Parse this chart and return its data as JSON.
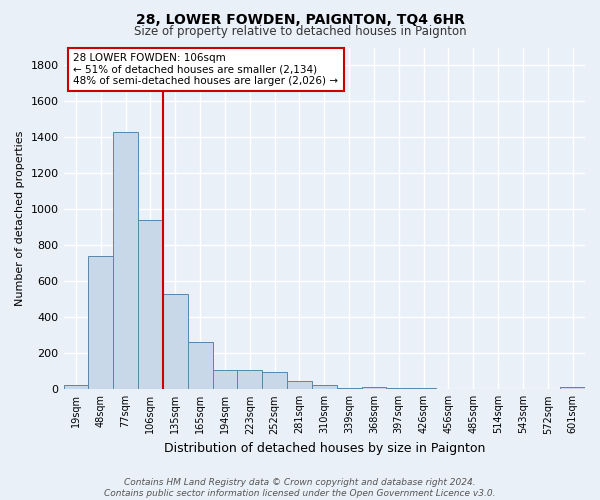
{
  "title": "28, LOWER FOWDEN, PAIGNTON, TQ4 6HR",
  "subtitle": "Size of property relative to detached houses in Paignton",
  "xlabel": "Distribution of detached houses by size in Paignton",
  "ylabel": "Number of detached properties",
  "bar_labels": [
    "19sqm",
    "48sqm",
    "77sqm",
    "106sqm",
    "135sqm",
    "165sqm",
    "194sqm",
    "223sqm",
    "252sqm",
    "281sqm",
    "310sqm",
    "339sqm",
    "368sqm",
    "397sqm",
    "426sqm",
    "456sqm",
    "485sqm",
    "514sqm",
    "543sqm",
    "572sqm",
    "601sqm"
  ],
  "bar_values": [
    25,
    740,
    1430,
    940,
    530,
    265,
    110,
    110,
    95,
    45,
    25,
    5,
    15,
    5,
    5,
    0,
    0,
    0,
    0,
    0,
    15
  ],
  "bar_color": "#c8d8e8",
  "bar_edge_color": "#5588aa",
  "vline_x_index": 3,
  "vline_color": "#cc0000",
  "ylim": [
    0,
    1900
  ],
  "yticks": [
    0,
    200,
    400,
    600,
    800,
    1000,
    1200,
    1400,
    1600,
    1800
  ],
  "annotation_text": "28 LOWER FOWDEN: 106sqm\n← 51% of detached houses are smaller (2,134)\n48% of semi-detached houses are larger (2,026) →",
  "annotation_box_color": "#ffffff",
  "annotation_box_edge_color": "#cc0000",
  "footer_text": "Contains HM Land Registry data © Crown copyright and database right 2024.\nContains public sector information licensed under the Open Government Licence v3.0.",
  "bg_color": "#eaf0f8",
  "plot_bg_color": "#eaf0f8",
  "grid_color": "#ffffff"
}
